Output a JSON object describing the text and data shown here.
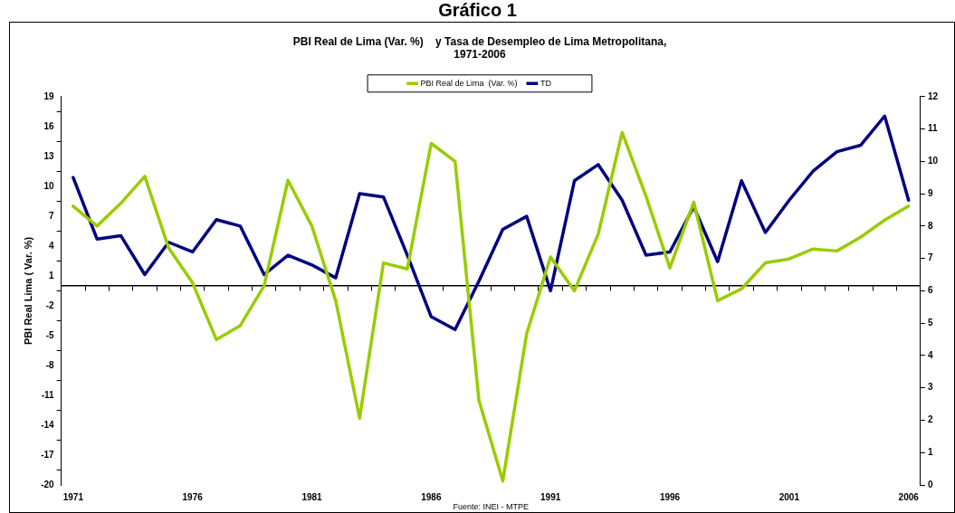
{
  "chart_data": {
    "type": "line",
    "title": "Gráfico 1",
    "subtitle": "PBI Real de Lima (Var. %)    y Tasa de Desempleo de Lima Metropolitana,\n1971-2006",
    "ylabel": "PBI Real Lima ( Var. %)",
    "categories": [
      "1971",
      null,
      null,
      null,
      null,
      "1976",
      null,
      null,
      null,
      null,
      "1981",
      null,
      null,
      null,
      null,
      "1986",
      null,
      null,
      null,
      null,
      "1991",
      null,
      null,
      null,
      null,
      "1996",
      null,
      null,
      null,
      null,
      "2001",
      null,
      null,
      null,
      null,
      "2006"
    ],
    "series": [
      {
        "name": "PBI Real de Lima  (Var. %)",
        "color": "#99cc00",
        "values": [
          8.0,
          6.0,
          8.3,
          11.0,
          3.8,
          0.3,
          -5.4,
          -4.0,
          0.0,
          10.6,
          6.0,
          -1.5,
          -13.3,
          2.3,
          1.7,
          14.3,
          12.5,
          -11.5,
          -19.6,
          -4.8,
          2.9,
          -0.5,
          5.2,
          15.4,
          9.0,
          1.8,
          8.4,
          -1.5,
          -0.3,
          2.3,
          2.7,
          3.7,
          3.5,
          4.9,
          6.6,
          8.0
        ]
      },
      {
        "name": "TD",
        "color": "#000080",
        "axis": "y2",
        "values": [
          9.5,
          7.6,
          7.7,
          6.5,
          7.5,
          7.2,
          8.2,
          8.0,
          6.5,
          7.1,
          6.8,
          6.4,
          9.0,
          8.9,
          7.1,
          5.2,
          4.8,
          6.3,
          7.9,
          8.3,
          6.0,
          9.4,
          9.9,
          8.8,
          7.1,
          7.2,
          8.6,
          6.9,
          9.4,
          7.8,
          8.8,
          9.7,
          10.3,
          10.5,
          11.4,
          8.8
        ]
      }
    ],
    "ylim": [
      -20,
      19
    ],
    "yticks": [
      -20,
      -17,
      -14,
      -11,
      -8,
      -5,
      -2,
      1,
      4,
      7,
      10,
      13,
      16,
      19
    ],
    "y2lim": [
      0,
      12
    ],
    "y2ticks": [
      0,
      1,
      2,
      3,
      4,
      5,
      6,
      7,
      8,
      9,
      10,
      11,
      12
    ],
    "grid": false,
    "legend": "top",
    "marker": "none",
    "line_style": "solid",
    "annotations": [
      "Fuente: INEI - MTPE"
    ]
  }
}
